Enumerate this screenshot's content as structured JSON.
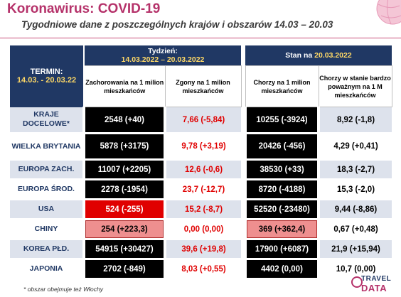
{
  "header": {
    "title": "Koronawirus: COVID-19",
    "subtitle": "Tygodniowe dane z poszczególnych krajów i obszarów 14.03 – 20.03"
  },
  "table": {
    "termin_label": "TERMIN:",
    "termin_dates": "14.03. - 20.03.22",
    "week_label": "Tydzień:",
    "week_dates": "14.03.2022 – 20.03.2022",
    "state_label": "Stan na ",
    "state_date": "20.03.2022",
    "col1": "Zachorowania na 1 milion mieszkańców",
    "col2": "Zgony na 1 milion mieszkańców",
    "col3": "Chorzy na 1 milion mieszkańców",
    "col4": "Chorzy w stanie bardzo poważnym na 1 M mieszkańców",
    "rows": [
      {
        "label": "KRAJE DOCELOWE*",
        "c1": "2548 (+40)",
        "c2": "7,66 (-5,84)",
        "c3": "10255 (-3924)",
        "c4": "8,92 (-1,8)"
      },
      {
        "label": "WIELKA BRYTANIA",
        "c1": "5878 (+3175)",
        "c2": "9,78 (+3,19)",
        "c3": "20426 (-456)",
        "c4": "4,29 (+0,41)"
      },
      {
        "label": "EUROPA ZACH.",
        "c1": "11007 (+2205)",
        "c2": "12,6 (-0,6)",
        "c3": "38530 (+33)",
        "c4": "18,3 (-2,7)"
      },
      {
        "label": "EUROPA ŚROD.",
        "c1": "2278 (-1954)",
        "c2": "23,7 (-12,7)",
        "c3": "8720 (-4188)",
        "c4": "15,3 (-2,0)"
      },
      {
        "label": "USA",
        "c1": "524  (-255)",
        "c2": "15,2 (-8,7)",
        "c3": "52520 (-23480)",
        "c4": "9,44 (-8,86)"
      },
      {
        "label": "CHINY",
        "c1": "254 (+223,3)",
        "c2": "0,00 (0,00)",
        "c3": "369 (+362,4)",
        "c4": "0,67 (+0,48)"
      },
      {
        "label": "KOREA PŁD.",
        "c1": "54915 (+30427)",
        "c2": "39,6 (+19,8)",
        "c3": "17900 (+6087)",
        "c4": "21,9 (+15,94)"
      },
      {
        "label": "JAPONIA",
        "c1": "2702 (-849)",
        "c2": "8,03 (+0,55)",
        "c3": "4402 (0,00)",
        "c4": "10,7 (0,00)"
      }
    ]
  },
  "footnote": "* obszar obejmuje też Włochy",
  "logo": {
    "line1": "TRAVEL",
    "line2": "DATA"
  },
  "colors": {
    "accent": "#b5326a",
    "navy": "#203864",
    "red": "#e00000",
    "yellow": "#ffd966"
  }
}
